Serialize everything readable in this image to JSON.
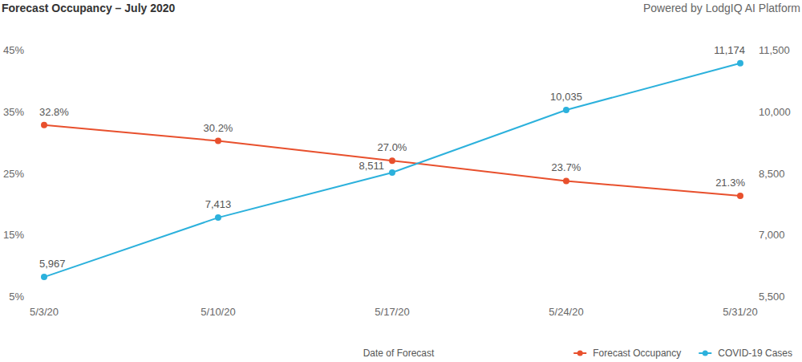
{
  "chart_data": {
    "type": "line",
    "title": "Forecast Occupancy – July 2020",
    "subtitle": "Powered by LodgIQ AI Platform",
    "x_label": "Date of Forecast",
    "categories": [
      "5/3/20",
      "5/10/20",
      "5/17/20",
      "5/24/20",
      "5/31/20"
    ],
    "series": [
      {
        "name": "Forecast Occupancy",
        "color": "#e8502d",
        "marker": "circle",
        "line_style": "solid",
        "values": [
          32.8,
          30.2,
          27.0,
          23.7,
          21.3
        ],
        "value_labels": [
          "32.8%",
          "30.2%",
          "27.0%",
          "23.7%",
          "21.3%"
        ]
      },
      {
        "name": "COVID-19 Cases",
        "color": "#2cb1dc",
        "marker": "circle",
        "line_style": "solid",
        "axis": "y2",
        "values": [
          5967,
          7413,
          8511,
          10035,
          11174
        ],
        "value_labels": [
          "5,967",
          "7,413",
          "8,511",
          "10,035",
          "11,174"
        ]
      }
    ],
    "ylim": [
      5,
      45
    ],
    "yticks": [
      {
        "value": 5,
        "label": "5%"
      },
      {
        "value": 15,
        "label": "15%"
      },
      {
        "value": 25,
        "label": "25%"
      },
      {
        "value": 35,
        "label": "35%"
      },
      {
        "value": 45,
        "label": "45%"
      }
    ],
    "y2lim": [
      5500,
      11500
    ],
    "y2ticks": [
      {
        "value": 5500,
        "label": "5,500"
      },
      {
        "value": 7000,
        "label": "7,000"
      },
      {
        "value": 8500,
        "label": "8,500"
      },
      {
        "value": 10000,
        "label": "10,000"
      },
      {
        "value": 11500,
        "label": "11,500"
      }
    ],
    "grid": false,
    "data_labels": true,
    "legend": "bottom-right"
  }
}
